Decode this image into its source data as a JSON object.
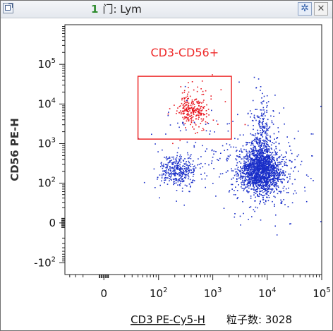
{
  "window": {
    "title_index": "1",
    "title": "门: Lym",
    "icons": {
      "expand": "expand-icon",
      "settings": "gear-icon",
      "close": "close-icon"
    },
    "settings_glyph": "✲",
    "close_glyph": "✕"
  },
  "event_count": {
    "label": "粒子数:",
    "value": "3028"
  },
  "chart_data": {
    "type": "scatter",
    "xlabel": "CD3 PE-Cy5-H",
    "ylabel": "CD56 PE-H",
    "x_scale": "biexponential",
    "y_scale": "biexponential",
    "xlim": [
      -50,
      100000
    ],
    "ylim": [
      -200,
      1000000
    ],
    "x_ticks": [
      {
        "value": 0,
        "label": "0"
      },
      {
        "value": 100,
        "label": "10",
        "exp": "2"
      },
      {
        "value": 1000,
        "label": "10",
        "exp": "3"
      },
      {
        "value": 10000,
        "label": "10",
        "exp": "4"
      },
      {
        "value": 100000,
        "label": "10",
        "exp": "5"
      }
    ],
    "y_ticks": [
      {
        "value": -100,
        "label": "-10",
        "exp": "2"
      },
      {
        "value": 0,
        "label": "0"
      },
      {
        "value": 100,
        "label": "10",
        "exp": "2"
      },
      {
        "value": 1000,
        "label": "10",
        "exp": "3"
      },
      {
        "value": 10000,
        "label": "10",
        "exp": "4"
      },
      {
        "value": 100000,
        "label": "10",
        "exp": "5"
      }
    ],
    "grid": false,
    "gate": {
      "name": "CD3-CD56+",
      "shape": "rectangle",
      "x_range": [
        40,
        2200
      ],
      "y_range": [
        1300,
        50000
      ],
      "color": "#ee2a2a"
    },
    "colors": {
      "in_gate": "#e8141e",
      "out_gate": "#1a2fc8"
    },
    "populations": [
      {
        "gate": "CD3-CD56+",
        "color": "#e8141e",
        "center": [
          420,
          7000
        ],
        "count": 260
      },
      {
        "gate": "none",
        "color": "#1a2fc8",
        "center": [
          230,
          210
        ],
        "count": 340
      },
      {
        "gate": "none",
        "color": "#1a2fc8",
        "center": [
          7500,
          220
        ],
        "count": 1850
      },
      {
        "gate": "none",
        "color": "#1a2fc8",
        "center": [
          8000,
          1500
        ],
        "count": 250
      },
      {
        "gate": "none",
        "color": "#1a2fc8",
        "center": [
          600,
          900
        ],
        "count": 60
      }
    ]
  }
}
